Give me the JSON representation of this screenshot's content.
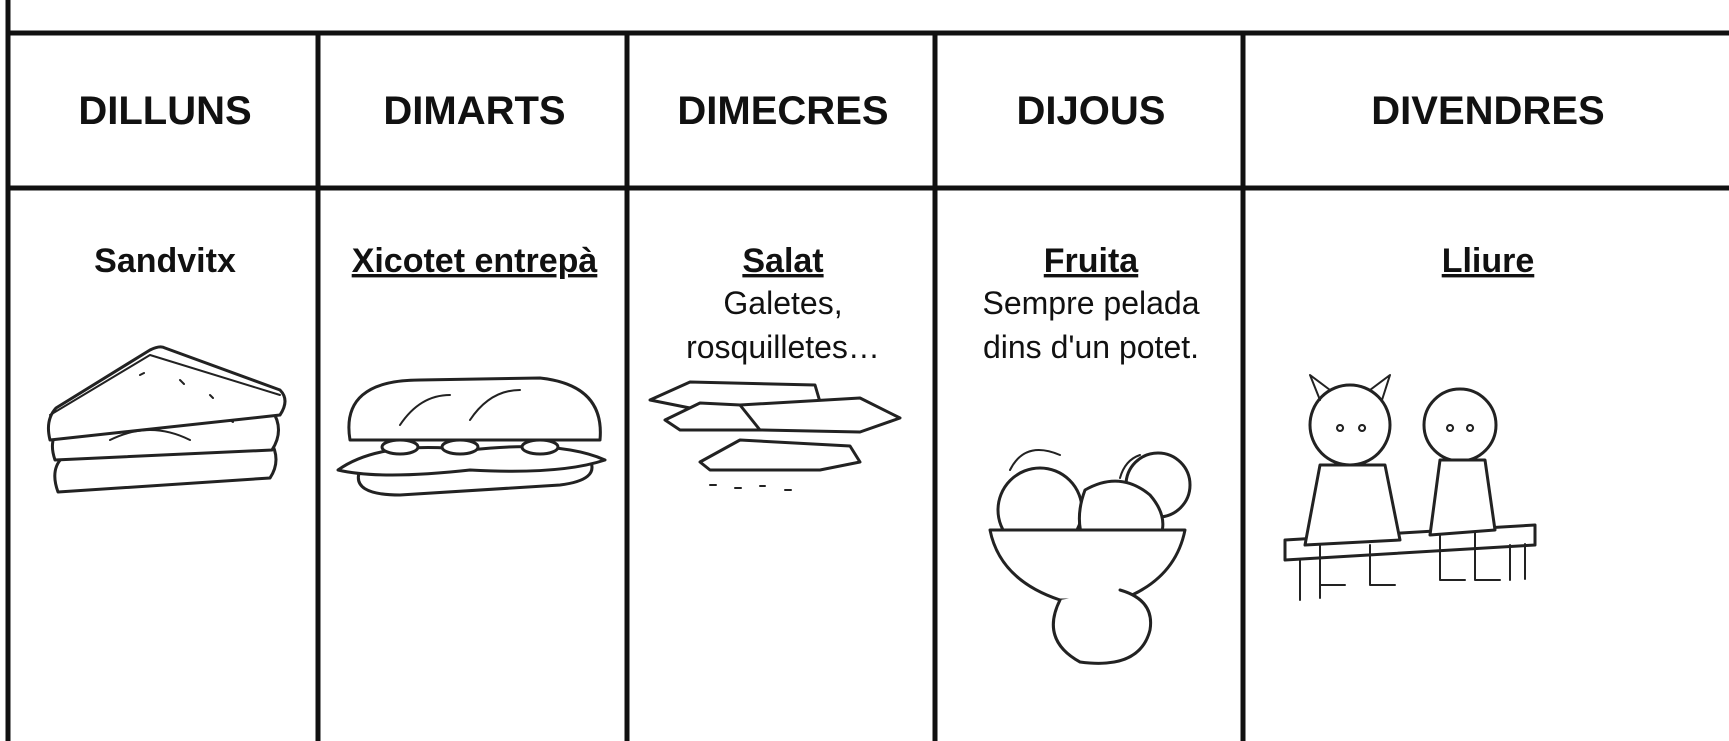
{
  "table": {
    "header": [
      "DILLUNS",
      "DIMARTS",
      "DIMECRES",
      "DIJOUS",
      "DIVENDRES"
    ],
    "rows": [
      [
        {
          "title": "Sandvitx",
          "underline": false
        },
        {
          "title": "Xicotet entrepà",
          "underline": true
        },
        {
          "title": "Salat",
          "underline": true,
          "lines": [
            "Galetes,",
            "rosquilletes…"
          ]
        },
        {
          "title": "Fruita",
          "underline": true,
          "lines": [
            "Sempre pelada",
            "dins d'un potet."
          ]
        },
        {
          "title": "Lliure",
          "underline": true
        }
      ]
    ]
  }
}
